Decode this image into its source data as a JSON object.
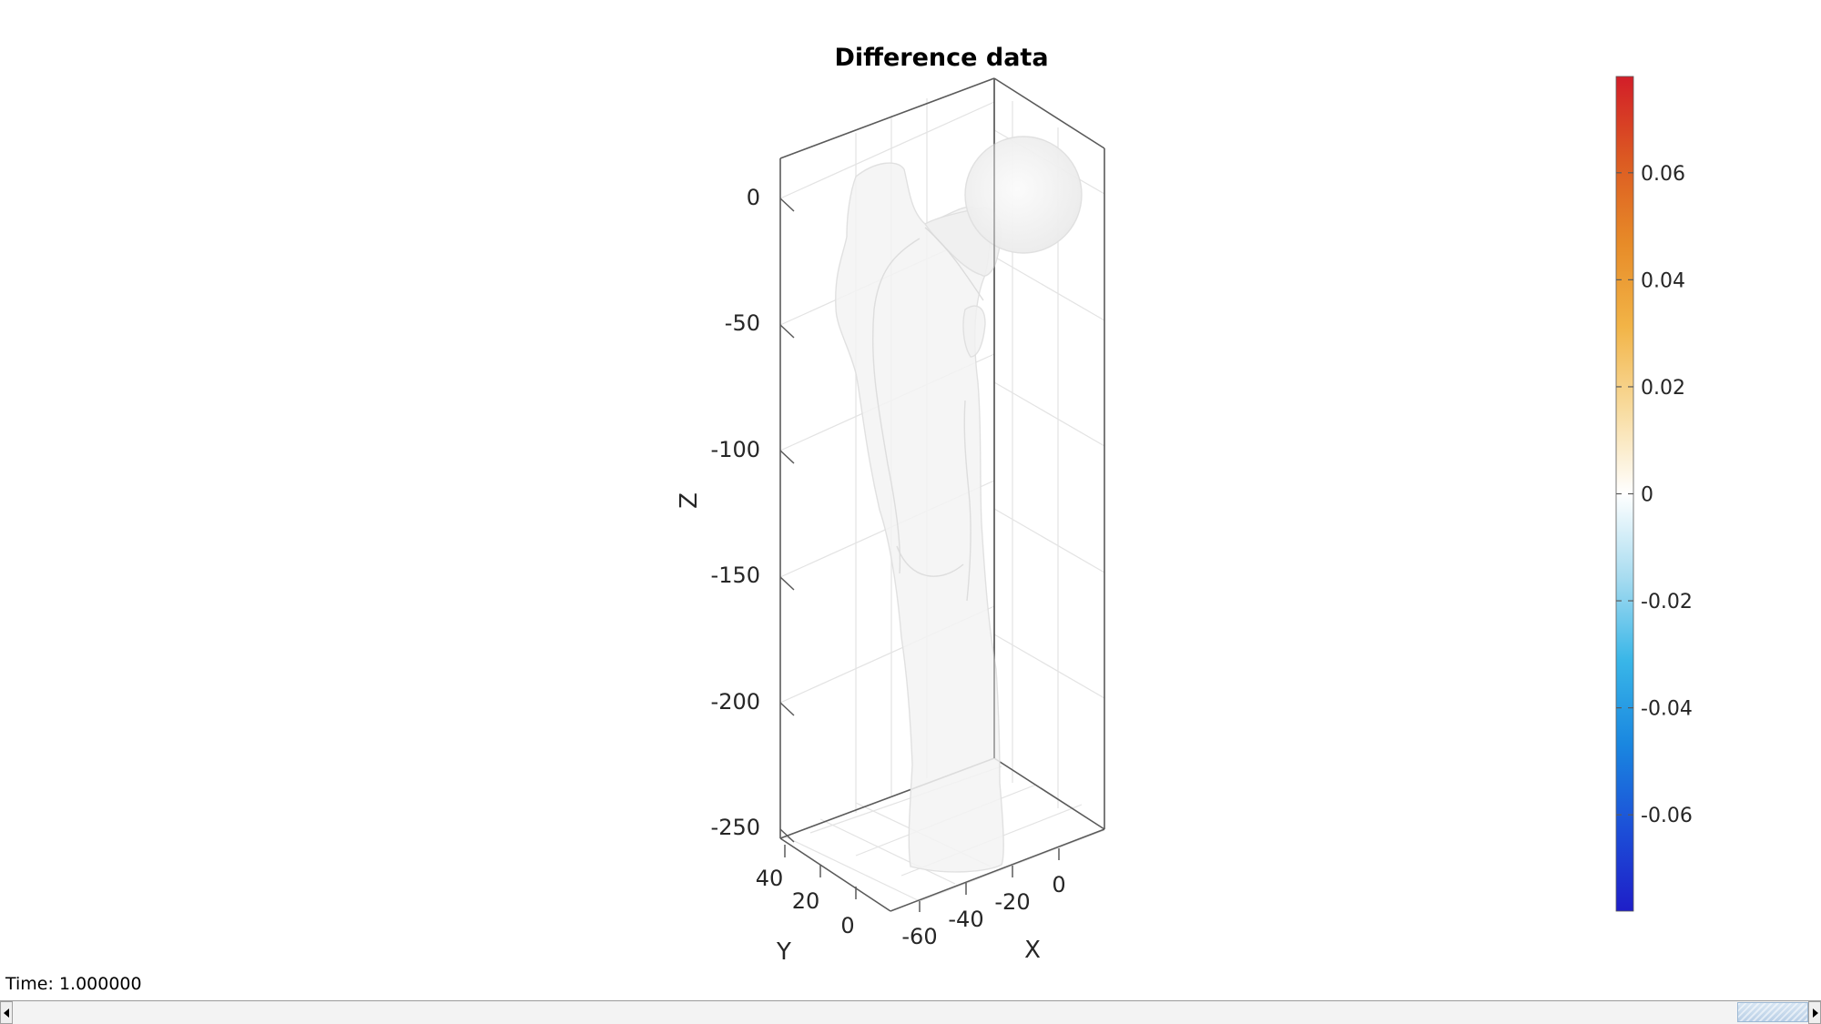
{
  "figure": {
    "title": "Difference data",
    "status_text": "Time: 1.000000",
    "slider": {
      "value": 1.0,
      "min": 0.0,
      "max": 1.0
    }
  },
  "chart_data": {
    "type": "surface3d",
    "title": "Difference data",
    "xlabel": "X",
    "ylabel": "Y",
    "zlabel": "Z",
    "x_ticks": [
      "-60",
      "-40",
      "-20",
      "0"
    ],
    "y_ticks": [
      "0",
      "20",
      "40"
    ],
    "z_ticks": [
      "0",
      "-50",
      "-100",
      "-150",
      "-200",
      "-250"
    ],
    "xlim": [
      -65,
      15
    ],
    "ylim": [
      -10,
      45
    ],
    "zlim": [
      -255,
      30
    ],
    "grid": true,
    "box": true,
    "surface": {
      "description_shape": "femur",
      "face_color": "#f2f2f2",
      "edge_color": "#e4e4e4",
      "face_alpha": 0.35
    },
    "colorbar": {
      "position": "right",
      "limits": [
        -0.078,
        0.078
      ],
      "ticks": [
        "0.06",
        "0.04",
        "0.02",
        "0",
        "-0.02",
        "-0.04",
        "-0.06"
      ],
      "tick_values": [
        0.06,
        0.04,
        0.02,
        0,
        -0.02,
        -0.04,
        -0.06
      ],
      "colormap": [
        "#1e1ec8",
        "#1c50d8",
        "#1a87e0",
        "#39b6e8",
        "#a8dcf0",
        "#ffffff",
        "#f8dca0",
        "#f2b447",
        "#e78b28",
        "#dc5a22",
        "#d21e28"
      ]
    }
  }
}
